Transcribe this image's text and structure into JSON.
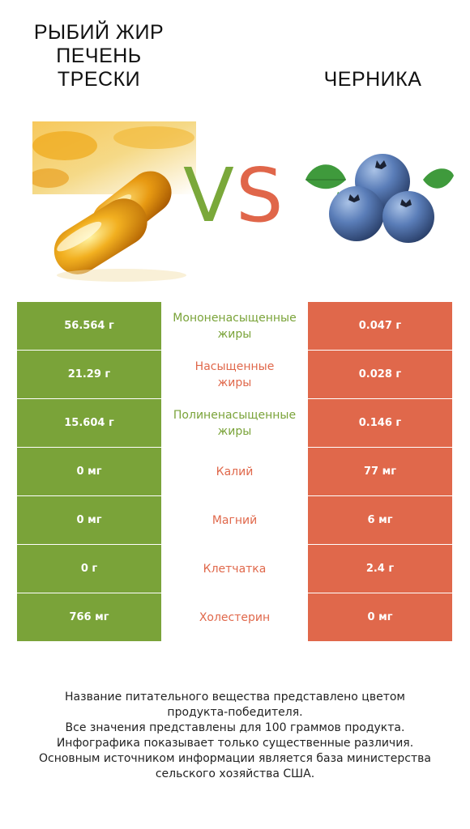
{
  "header": {
    "left_title": "РЫБИЙ ЖИР\nПЕЧЕНЬ\nТРЕСКИ",
    "right_title": "ЧЕРНИКА",
    "vs_v": "V",
    "vs_s": "S"
  },
  "colors": {
    "left": "#7aa339",
    "right": "#e0684b",
    "capsule": "#e9a820",
    "blueberry": "#3e5a8e",
    "leaf": "#3f9a3c"
  },
  "rows": [
    {
      "left": "56.564 г",
      "label": "Мононенасыщенные\nжиры",
      "right": "0.047 г",
      "winner": "left"
    },
    {
      "left": "21.29 г",
      "label": "Насыщенные\nжиры",
      "right": "0.028 г",
      "winner": "right"
    },
    {
      "left": "15.604 г",
      "label": "Полиненасыщенные\nжиры",
      "right": "0.146 г",
      "winner": "left"
    },
    {
      "left": "0 мг",
      "label": "Калий",
      "right": "77 мг",
      "winner": "right"
    },
    {
      "left": "0 мг",
      "label": "Магний",
      "right": "6 мг",
      "winner": "right"
    },
    {
      "left": "0 г",
      "label": "Клетчатка",
      "right": "2.4 г",
      "winner": "right"
    },
    {
      "left": "766 мг",
      "label": "Холестерин",
      "right": "0 мг",
      "winner": "right"
    }
  ],
  "footer": [
    "Название питательного вещества представлено цветом",
    "продукта-победителя.",
    "Все значения представлены для 100 граммов продукта.",
    "Инфографика показывает только существенные различия.",
    "Основным источником информации является база министерства",
    "сельского хозяйства США."
  ]
}
